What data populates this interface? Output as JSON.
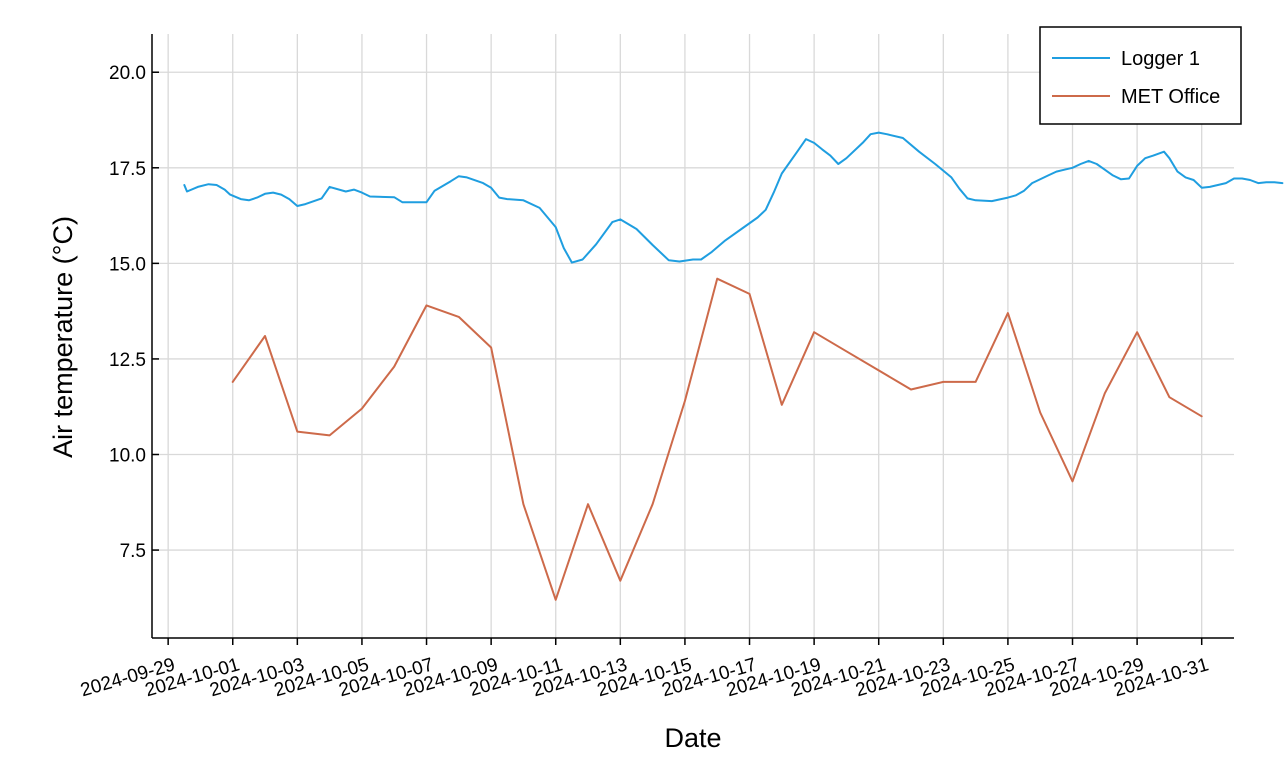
{
  "chart_data": {
    "type": "line",
    "xlabel": "Date",
    "ylabel": "Air temperature (°C)",
    "x_axis_type": "date",
    "xlim": [
      "2024-09-28T12:00",
      "2024-11-01T00:00"
    ],
    "ylim": [
      5.2,
      21.0
    ],
    "x_ticks": [
      "2024-09-29",
      "2024-10-01",
      "2024-10-03",
      "2024-10-05",
      "2024-10-07",
      "2024-10-09",
      "2024-10-11",
      "2024-10-13",
      "2024-10-15",
      "2024-10-17",
      "2024-10-19",
      "2024-10-21",
      "2024-10-23",
      "2024-10-25",
      "2024-10-27",
      "2024-10-29",
      "2024-10-31"
    ],
    "y_ticks": [
      7.5,
      10.0,
      12.5,
      15.0,
      17.5,
      20.0
    ],
    "y_tick_labels": [
      "7.5",
      "10.0",
      "12.5",
      "15.0",
      "17.5",
      "20.0"
    ],
    "grid": true,
    "legend_position": "top-right",
    "series": [
      {
        "name": "Logger 1",
        "color": "#1f9ee0",
        "points": [
          [
            "2024-09-29T12:00",
            17.05
          ],
          [
            "2024-09-29T14:00",
            16.88
          ],
          [
            "2024-09-29T22:00",
            17.0
          ],
          [
            "2024-09-30T06:00",
            17.07
          ],
          [
            "2024-09-30T12:00",
            17.05
          ],
          [
            "2024-09-30T18:00",
            16.93
          ],
          [
            "2024-09-30T22:00",
            16.8
          ],
          [
            "2024-10-01T06:00",
            16.68
          ],
          [
            "2024-10-01T12:00",
            16.65
          ],
          [
            "2024-10-01T18:00",
            16.72
          ],
          [
            "2024-10-02T00:00",
            16.82
          ],
          [
            "2024-10-02T06:00",
            16.85
          ],
          [
            "2024-10-02T12:00",
            16.8
          ],
          [
            "2024-10-02T18:00",
            16.68
          ],
          [
            "2024-10-03T00:00",
            16.5
          ],
          [
            "2024-10-03T06:00",
            16.55
          ],
          [
            "2024-10-03T18:00",
            16.7
          ],
          [
            "2024-10-04T00:00",
            17.0
          ],
          [
            "2024-10-04T12:00",
            16.88
          ],
          [
            "2024-10-04T18:00",
            16.93
          ],
          [
            "2024-10-05T00:00",
            16.85
          ],
          [
            "2024-10-05T06:00",
            16.75
          ],
          [
            "2024-10-06T00:00",
            16.73
          ],
          [
            "2024-10-06T06:00",
            16.6
          ],
          [
            "2024-10-07T00:00",
            16.6
          ],
          [
            "2024-10-07T06:00",
            16.9
          ],
          [
            "2024-10-07T18:00",
            17.15
          ],
          [
            "2024-10-08T00:00",
            17.28
          ],
          [
            "2024-10-08T06:00",
            17.25
          ],
          [
            "2024-10-08T18:00",
            17.1
          ],
          [
            "2024-10-09T00:00",
            16.98
          ],
          [
            "2024-10-09T06:00",
            16.72
          ],
          [
            "2024-10-09T12:00",
            16.68
          ],
          [
            "2024-10-10T00:00",
            16.65
          ],
          [
            "2024-10-10T12:00",
            16.45
          ],
          [
            "2024-10-11T00:00",
            15.95
          ],
          [
            "2024-10-11T06:00",
            15.4
          ],
          [
            "2024-10-11T12:00",
            15.02
          ],
          [
            "2024-10-11T20:00",
            15.1
          ],
          [
            "2024-10-12T06:00",
            15.5
          ],
          [
            "2024-10-12T18:00",
            16.08
          ],
          [
            "2024-10-13T00:00",
            16.15
          ],
          [
            "2024-10-13T12:00",
            15.9
          ],
          [
            "2024-10-14T00:00",
            15.48
          ],
          [
            "2024-10-14T12:00",
            15.08
          ],
          [
            "2024-10-14T20:00",
            15.05
          ],
          [
            "2024-10-15T06:00",
            15.1
          ],
          [
            "2024-10-15T12:00",
            15.1
          ],
          [
            "2024-10-15T20:00",
            15.3
          ],
          [
            "2024-10-16T06:00",
            15.6
          ],
          [
            "2024-10-16T18:00",
            15.9
          ],
          [
            "2024-10-17T06:00",
            16.2
          ],
          [
            "2024-10-17T12:00",
            16.4
          ],
          [
            "2024-10-17T18:00",
            16.85
          ],
          [
            "2024-10-18T00:00",
            17.35
          ],
          [
            "2024-10-18T12:00",
            17.95
          ],
          [
            "2024-10-18T18:00",
            18.25
          ],
          [
            "2024-10-19T00:00",
            18.15
          ],
          [
            "2024-10-19T06:00",
            17.98
          ],
          [
            "2024-10-19T12:00",
            17.82
          ],
          [
            "2024-10-19T18:00",
            17.6
          ],
          [
            "2024-10-20T00:00",
            17.75
          ],
          [
            "2024-10-20T12:00",
            18.15
          ],
          [
            "2024-10-20T18:00",
            18.38
          ],
          [
            "2024-10-21T00:00",
            18.42
          ],
          [
            "2024-10-21T06:00",
            18.38
          ],
          [
            "2024-10-21T18:00",
            18.28
          ],
          [
            "2024-10-22T06:00",
            17.92
          ],
          [
            "2024-10-22T18:00",
            17.6
          ],
          [
            "2024-10-23T06:00",
            17.25
          ],
          [
            "2024-10-23T12:00",
            16.95
          ],
          [
            "2024-10-23T18:00",
            16.7
          ],
          [
            "2024-10-24T00:00",
            16.65
          ],
          [
            "2024-10-24T12:00",
            16.63
          ],
          [
            "2024-10-25T00:00",
            16.72
          ],
          [
            "2024-10-25T06:00",
            16.78
          ],
          [
            "2024-10-25T12:00",
            16.9
          ],
          [
            "2024-10-25T18:00",
            17.1
          ],
          [
            "2024-10-26T06:00",
            17.3
          ],
          [
            "2024-10-26T12:00",
            17.4
          ],
          [
            "2024-10-26T18:00",
            17.45
          ],
          [
            "2024-10-27T00:00",
            17.5
          ],
          [
            "2024-10-27T06:00",
            17.6
          ],
          [
            "2024-10-27T12:00",
            17.68
          ],
          [
            "2024-10-27T18:00",
            17.6
          ],
          [
            "2024-10-28T00:00",
            17.45
          ],
          [
            "2024-10-28T06:00",
            17.3
          ],
          [
            "2024-10-28T12:00",
            17.2
          ],
          [
            "2024-10-28T18:00",
            17.22
          ],
          [
            "2024-10-29T00:00",
            17.55
          ],
          [
            "2024-10-29T06:00",
            17.75
          ],
          [
            "2024-10-29T12:00",
            17.82
          ],
          [
            "2024-10-29T20:00",
            17.92
          ],
          [
            "2024-10-30T00:00",
            17.75
          ],
          [
            "2024-10-30T06:00",
            17.4
          ],
          [
            "2024-10-30T12:00",
            17.25
          ],
          [
            "2024-10-30T18:00",
            17.18
          ],
          [
            "2024-10-31T00:00",
            16.98
          ],
          [
            "2024-10-31T06:00",
            17.0
          ],
          [
            "2024-10-31T18:00",
            17.1
          ],
          [
            "2024-11-01T00:00",
            17.22
          ],
          [
            "2024-11-01T06:00",
            17.22
          ],
          [
            "2024-11-01T12:00",
            17.18
          ],
          [
            "2024-11-01T18:00",
            17.1
          ],
          [
            "2024-11-02T00:00",
            17.12
          ],
          [
            "2024-11-02T06:00",
            17.12
          ],
          [
            "2024-11-02T12:00",
            17.1
          ]
        ]
      },
      {
        "name": "MET Office",
        "color": "#cd6a4a",
        "points": [
          [
            "2024-10-01T00:00",
            11.9
          ],
          [
            "2024-10-02T00:00",
            13.1
          ],
          [
            "2024-10-03T00:00",
            10.6
          ],
          [
            "2024-10-04T00:00",
            10.5
          ],
          [
            "2024-10-05T00:00",
            11.2
          ],
          [
            "2024-10-06T00:00",
            12.3
          ],
          [
            "2024-10-07T00:00",
            13.9
          ],
          [
            "2024-10-08T00:00",
            13.6
          ],
          [
            "2024-10-09T00:00",
            12.8
          ],
          [
            "2024-10-10T00:00",
            8.7
          ],
          [
            "2024-10-11T00:00",
            6.2
          ],
          [
            "2024-10-12T00:00",
            8.7
          ],
          [
            "2024-10-13T00:00",
            6.7
          ],
          [
            "2024-10-14T00:00",
            8.7
          ],
          [
            "2024-10-15T00:00",
            11.4
          ],
          [
            "2024-10-16T00:00",
            14.6
          ],
          [
            "2024-10-17T00:00",
            14.2
          ],
          [
            "2024-10-18T00:00",
            11.3
          ],
          [
            "2024-10-19T00:00",
            13.2
          ],
          [
            "2024-10-20T00:00",
            12.7
          ],
          [
            "2024-10-21T00:00",
            12.2
          ],
          [
            "2024-10-22T00:00",
            11.7
          ],
          [
            "2024-10-23T00:00",
            11.9
          ],
          [
            "2024-10-24T00:00",
            11.9
          ],
          [
            "2024-10-25T00:00",
            13.7
          ],
          [
            "2024-10-26T00:00",
            11.1
          ],
          [
            "2024-10-27T00:00",
            9.3
          ],
          [
            "2024-10-28T00:00",
            11.6
          ],
          [
            "2024-10-29T00:00",
            13.2
          ],
          [
            "2024-10-30T00:00",
            11.5
          ],
          [
            "2024-10-31T00:00",
            11.0
          ]
        ]
      }
    ]
  }
}
